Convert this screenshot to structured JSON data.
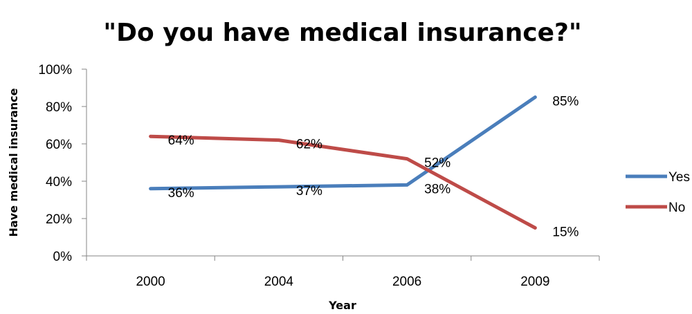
{
  "chart_data": {
    "type": "line",
    "title": "\"Do you have medical insurance?\"",
    "xlabel": "Year",
    "ylabel": "Have medical insurance",
    "categories": [
      "2000",
      "2004",
      "2006",
      "2009"
    ],
    "ylim": [
      0,
      100
    ],
    "y_ticks": [
      "0%",
      "20%",
      "40%",
      "60%",
      "80%",
      "100%"
    ],
    "grid": false,
    "legend_position": "right",
    "series": [
      {
        "name": "Yes",
        "color": "#4a7ebb",
        "values": [
          36,
          37,
          38,
          85
        ],
        "labels": [
          "36%",
          "37%",
          "38%",
          "85%"
        ]
      },
      {
        "name": "No",
        "color": "#be4b48",
        "values": [
          64,
          62,
          52,
          15
        ],
        "labels": [
          "64%",
          "62%",
          "52%",
          "15%"
        ]
      }
    ]
  }
}
